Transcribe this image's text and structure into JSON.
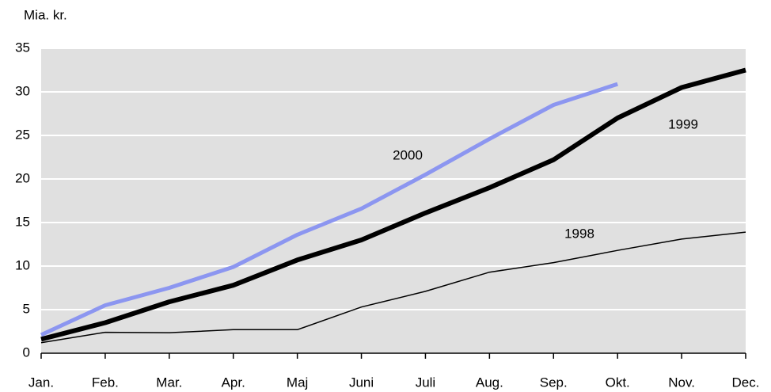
{
  "chart_data": {
    "type": "line",
    "ylabel": "Mia. kr.",
    "categories": [
      "Jan.",
      "Feb.",
      "Mar.",
      "Apr.",
      "Maj",
      "Juni",
      "Juli",
      "Aug.",
      "Sep.",
      "Okt.",
      "Nov.",
      "Dec."
    ],
    "series": [
      {
        "name": "2000",
        "color": "#8c96f0",
        "values": [
          2.1,
          5.5,
          7.5,
          9.9,
          13.6,
          16.6,
          20.5,
          24.6,
          28.5,
          30.9,
          null,
          null
        ]
      },
      {
        "name": "1999",
        "color": "#000000",
        "values": [
          1.6,
          3.5,
          5.9,
          7.8,
          10.7,
          13.0,
          16.1,
          19.0,
          22.2,
          27.0,
          30.5,
          32.5
        ]
      },
      {
        "name": "1998",
        "color": "#000000",
        "values": [
          1.2,
          2.4,
          2.35,
          2.7,
          2.7,
          5.3,
          7.1,
          9.3,
          10.4,
          11.8,
          13.1,
          13.9
        ]
      }
    ],
    "ylim": [
      0,
      35
    ],
    "yticks": [
      0,
      5,
      10,
      15,
      20,
      25,
      30,
      35
    ],
    "grid": true
  }
}
